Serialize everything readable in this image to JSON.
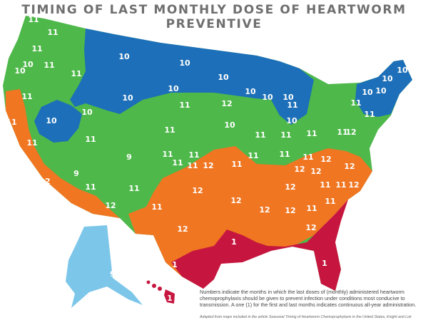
{
  "title": "TIMING OF LAST MONTHLY DOSE OF HEARTWORM PREVENTIVE",
  "legend": {
    "colors": {
      "month_9": "#7cc6ea",
      "month_10": "#1c6fb8",
      "month_11": "#4eb84a",
      "month_12": "#f07622",
      "month_1": "#c6163f"
    }
  },
  "caption": "Numbers indicate the months in which the last doses of (monthly) administered heartworm chemoprophylaxis should be given to prevent infection under conditions most conducive to transmission. A one (1) for the first and last months indicates continuous all-year administration.",
  "source_note": "Adapted from maps included in the article Seasonal Timing of Heartworm Chemoprophylaxis in the United States, Knight and Lok",
  "labels": [
    {
      "id": "wa1",
      "text": "11"
    },
    {
      "id": "wa2",
      "text": "11"
    },
    {
      "id": "wa3",
      "text": "11"
    },
    {
      "id": "or1",
      "text": "10"
    },
    {
      "id": "or2",
      "text": "11"
    },
    {
      "id": "or3",
      "text": "10"
    },
    {
      "id": "or4",
      "text": "11"
    },
    {
      "id": "or5",
      "text": "11"
    },
    {
      "id": "id1",
      "text": "10"
    },
    {
      "id": "id2",
      "text": "10"
    },
    {
      "id": "mt1",
      "text": "10"
    },
    {
      "id": "mt2",
      "text": "10"
    },
    {
      "id": "nd1",
      "text": "10"
    },
    {
      "id": "sd1",
      "text": "10"
    },
    {
      "id": "mn1",
      "text": "10"
    },
    {
      "id": "mn2",
      "text": "11"
    },
    {
      "id": "wi1",
      "text": "10"
    },
    {
      "id": "wi2",
      "text": "10"
    },
    {
      "id": "mi1",
      "text": "10"
    },
    {
      "id": "mi2",
      "text": "11"
    },
    {
      "id": "mi3",
      "text": "10"
    },
    {
      "id": "me1",
      "text": "10"
    },
    {
      "id": "ne1",
      "text": "10"
    },
    {
      "id": "ne2",
      "text": "10"
    },
    {
      "id": "ne3",
      "text": "10"
    },
    {
      "id": "ny1",
      "text": "11"
    },
    {
      "id": "ny2",
      "text": "11"
    },
    {
      "id": "ca1",
      "text": "12"
    },
    {
      "id": "ca2",
      "text": "11"
    },
    {
      "id": "ca3",
      "text": "12"
    },
    {
      "id": "ca4",
      "text": "11"
    },
    {
      "id": "nv1",
      "text": "11"
    },
    {
      "id": "nv2",
      "text": "10"
    },
    {
      "id": "wy1",
      "text": "11"
    },
    {
      "id": "wy2",
      "text": "11"
    },
    {
      "id": "ut1",
      "text": "11"
    },
    {
      "id": "co1",
      "text": "9"
    },
    {
      "id": "co2",
      "text": "11"
    },
    {
      "id": "az1",
      "text": "9"
    },
    {
      "id": "az2",
      "text": "11"
    },
    {
      "id": "az3",
      "text": "12"
    },
    {
      "id": "az4",
      "text": "12"
    },
    {
      "id": "nm1",
      "text": "11"
    },
    {
      "id": "nm2",
      "text": "11"
    },
    {
      "id": "ne4",
      "text": "11"
    },
    {
      "id": "ks1",
      "text": "11"
    },
    {
      "id": "ks2",
      "text": "11"
    },
    {
      "id": "ok1",
      "text": "12"
    },
    {
      "id": "ia1",
      "text": "11"
    },
    {
      "id": "il1",
      "text": "11"
    },
    {
      "id": "in1",
      "text": "11"
    },
    {
      "id": "oh1",
      "text": "11"
    },
    {
      "id": "oh2",
      "text": "11"
    },
    {
      "id": "pa1",
      "text": "11"
    },
    {
      "id": "mo1",
      "text": "12"
    },
    {
      "id": "ky1",
      "text": "12"
    },
    {
      "id": "wv1",
      "text": "12"
    },
    {
      "id": "va1",
      "text": "12"
    },
    {
      "id": "tn1",
      "text": "12"
    },
    {
      "id": "tn2",
      "text": "11"
    },
    {
      "id": "nc1",
      "text": "11"
    },
    {
      "id": "nc2",
      "text": "12"
    },
    {
      "id": "tx1",
      "text": "12"
    },
    {
      "id": "tx2",
      "text": "12"
    },
    {
      "id": "tx3",
      "text": "1"
    },
    {
      "id": "ar1",
      "text": "12"
    },
    {
      "id": "ms1",
      "text": "12"
    },
    {
      "id": "al1",
      "text": "12"
    },
    {
      "id": "ga1",
      "text": "11"
    },
    {
      "id": "ga2",
      "text": "12"
    },
    {
      "id": "sc1",
      "text": "11"
    },
    {
      "id": "la1",
      "text": "1"
    },
    {
      "id": "fl1",
      "text": "1"
    },
    {
      "id": "ak1",
      "text": "9"
    },
    {
      "id": "hi1",
      "text": "1"
    }
  ]
}
